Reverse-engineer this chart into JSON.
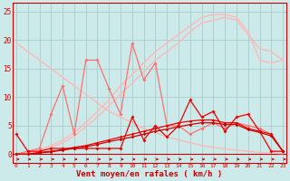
{
  "xlabel": "Vent moyen/en rafales ( km/h )",
  "bg_color": "#cceaea",
  "grid_color": "#aacccc",
  "x": [
    0,
    1,
    2,
    3,
    4,
    5,
    6,
    7,
    8,
    9,
    10,
    11,
    12,
    13,
    14,
    15,
    16,
    17,
    18,
    19,
    20,
    21,
    22,
    23
  ],
  "line_fade1": [
    19.5,
    18.0,
    16.5,
    15.0,
    13.5,
    12.0,
    10.5,
    9.0,
    7.5,
    6.5,
    5.5,
    4.5,
    3.8,
    3.0,
    2.5,
    2.0,
    1.5,
    1.2,
    0.9,
    0.7,
    0.5,
    0.3,
    0.2,
    0.1
  ],
  "line_fade2": [
    0.0,
    0.3,
    0.8,
    1.5,
    2.5,
    3.8,
    5.5,
    7.5,
    9.5,
    12.0,
    14.0,
    16.0,
    18.0,
    19.5,
    21.0,
    22.5,
    24.0,
    24.5,
    24.5,
    24.0,
    21.5,
    16.5,
    16.0,
    16.5
  ],
  "line_fade3": [
    0.0,
    0.2,
    0.5,
    1.2,
    2.0,
    3.2,
    4.8,
    6.5,
    8.5,
    10.5,
    12.5,
    14.5,
    16.5,
    18.0,
    19.5,
    21.5,
    23.0,
    23.5,
    24.0,
    23.5,
    21.0,
    18.5,
    18.0,
    16.5
  ],
  "line_pink_zz": [
    0.0,
    0.5,
    1.0,
    7.0,
    12.0,
    3.5,
    16.5,
    16.5,
    11.5,
    7.0,
    19.5,
    13.0,
    16.0,
    5.0,
    5.0,
    3.5,
    4.5,
    5.5,
    4.5,
    5.5,
    5.0,
    4.5,
    3.5,
    0.5
  ],
  "line_red_zz": [
    3.5,
    0.5,
    0.5,
    1.0,
    1.0,
    1.0,
    1.0,
    1.0,
    1.0,
    1.0,
    6.5,
    2.5,
    5.0,
    3.0,
    5.0,
    9.5,
    6.5,
    7.5,
    4.0,
    6.5,
    7.0,
    4.0,
    0.5,
    0.5
  ],
  "line_low1": [
    0.0,
    0.0,
    0.3,
    0.5,
    0.8,
    1.2,
    1.5,
    2.0,
    2.5,
    3.0,
    3.5,
    4.0,
    4.5,
    5.0,
    5.5,
    5.8,
    6.0,
    6.0,
    5.5,
    5.5,
    4.5,
    4.0,
    3.5,
    0.5
  ],
  "line_low2": [
    0.0,
    0.0,
    0.2,
    0.4,
    0.7,
    1.0,
    1.3,
    1.7,
    2.2,
    2.6,
    3.0,
    3.5,
    4.0,
    4.4,
    4.8,
    5.2,
    5.5,
    5.5,
    5.2,
    5.2,
    4.3,
    3.8,
    3.2,
    0.5
  ],
  "color_fade": "#ffb8b8",
  "color_pink": "#ff7070",
  "color_red": "#ee0000",
  "color_dark": "#cc0000",
  "xticks": [
    0,
    1,
    2,
    3,
    4,
    5,
    6,
    7,
    8,
    9,
    10,
    11,
    12,
    13,
    14,
    15,
    16,
    17,
    18,
    19,
    20,
    21,
    22,
    23
  ],
  "yticks": [
    0,
    5,
    10,
    15,
    20,
    25
  ],
  "xlim": [
    -0.3,
    23.3
  ],
  "ylim": [
    -1.5,
    26.5
  ]
}
